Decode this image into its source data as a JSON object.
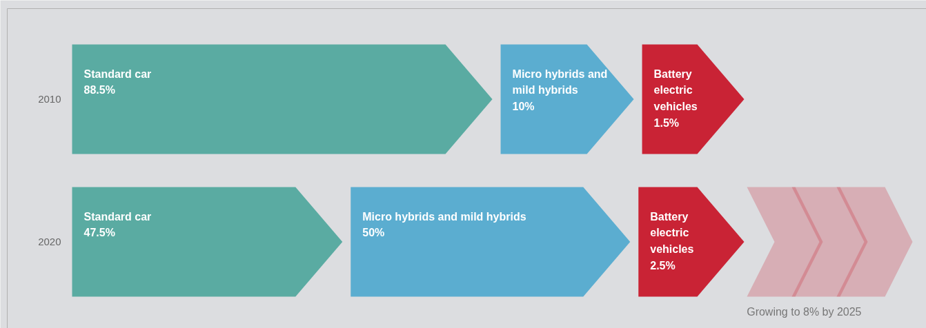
{
  "chart_data": {
    "type": "other",
    "categories": [
      "2010",
      "2020"
    ],
    "series": [
      {
        "name": "Standard car",
        "color": "#5aaba2",
        "values": [
          88.5,
          47.5
        ],
        "value_labels": [
          "88.5%",
          "47.5%"
        ]
      },
      {
        "name": "Micro hybrids and mild hybrids",
        "color": "#5badd0",
        "values": [
          10,
          50
        ],
        "value_labels": [
          "10%",
          "50%"
        ]
      },
      {
        "name": "Battery electric vehicles",
        "color": "#c92335",
        "values": [
          1.5,
          2.5
        ],
        "value_labels": [
          "1.5%",
          "2.5%"
        ]
      }
    ],
    "annotations": [
      "Growing to 8% by 2025"
    ]
  }
}
